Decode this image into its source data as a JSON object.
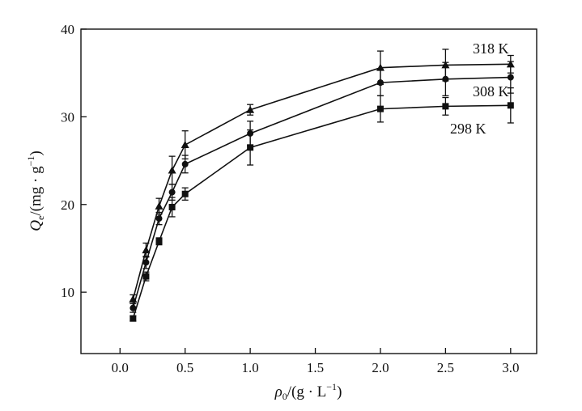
{
  "chart_data": {
    "type": "line",
    "title": "",
    "xlabel": {
      "main": "ρ",
      "sub": "0",
      "rest": "/(g · L",
      "sup": "−1",
      "end": ")"
    },
    "ylabel": {
      "main": "Q",
      "sub": "e",
      "rest": "/(mg · g",
      "sup": "−1",
      "end": ")"
    },
    "xlim": [
      -0.3,
      3.2
    ],
    "ylim": [
      3,
      40
    ],
    "xticks": [
      0.0,
      0.5,
      1.0,
      1.5,
      2.0,
      2.5,
      3.0
    ],
    "xtick_labels": [
      "0.0",
      "0.5",
      "1.0",
      "1.5",
      "2.0",
      "2.5",
      "3.0"
    ],
    "yticks": [
      10,
      20,
      30,
      40
    ],
    "ytick_labels": [
      "10",
      "20",
      "30",
      "40"
    ],
    "grid": false,
    "x": [
      0.1,
      0.2,
      0.3,
      0.4,
      0.5,
      1.0,
      2.0,
      2.5,
      3.0
    ],
    "series": [
      {
        "name": "318 K",
        "marker": "triangle",
        "values": [
          9.2,
          14.8,
          19.8,
          23.9,
          26.8,
          30.8,
          35.6,
          35.9,
          36.0
        ],
        "errors": [
          0.5,
          0.8,
          0.9,
          1.6,
          1.6,
          0.6,
          1.9,
          1.8,
          1.0
        ]
      },
      {
        "name": "308 K",
        "marker": "circle",
        "values": [
          8.2,
          13.4,
          18.4,
          21.4,
          24.6,
          28.1,
          33.9,
          34.3,
          34.5
        ],
        "errors": [
          0.5,
          0.7,
          0.7,
          0.9,
          1.0,
          1.4,
          1.5,
          1.9,
          1.8
        ]
      },
      {
        "name": "298 K",
        "marker": "square",
        "values": [
          7.0,
          11.8,
          15.8,
          19.7,
          21.2,
          26.5,
          30.9,
          31.2,
          31.3
        ],
        "errors": [
          0.3,
          0.5,
          0.4,
          1.1,
          0.7,
          2.0,
          1.5,
          1.0,
          2.0
        ]
      }
    ]
  }
}
